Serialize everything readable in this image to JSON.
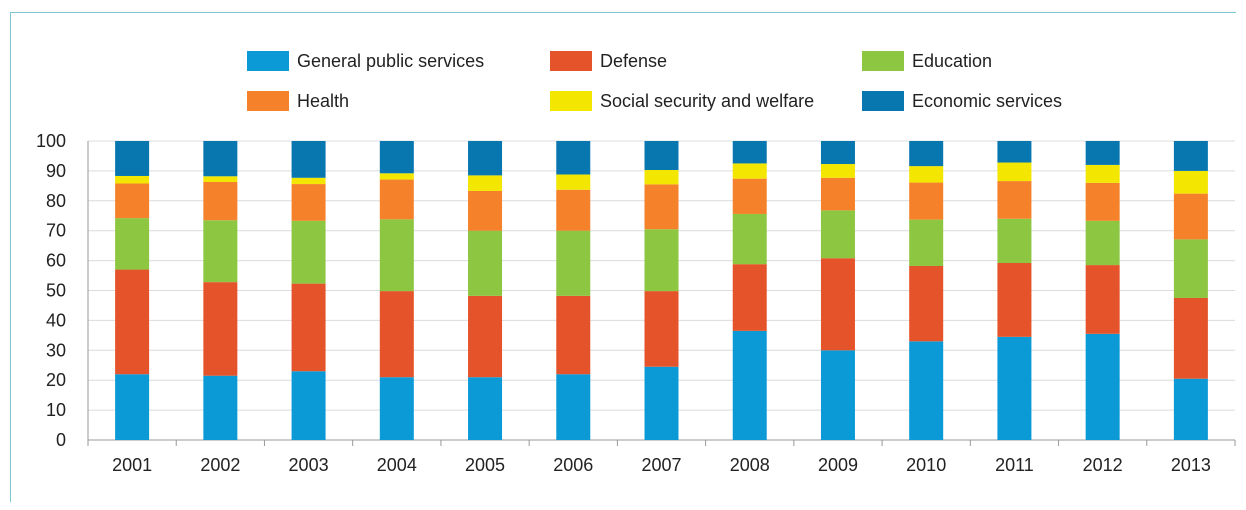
{
  "chart_data": {
    "type": "bar",
    "stacked": true,
    "categories": [
      "2001",
      "2002",
      "2003",
      "2004",
      "2005",
      "2006",
      "2007",
      "2008",
      "2009",
      "2010",
      "2011",
      "2012",
      "2013"
    ],
    "ylim": [
      0,
      100
    ],
    "yticks": [
      0,
      10,
      20,
      30,
      40,
      50,
      60,
      70,
      80,
      90,
      100
    ],
    "grid": true,
    "legend_position": "top",
    "series": [
      {
        "name": "General public services",
        "color": "#0c9ad7",
        "values": [
          22,
          21.5,
          23,
          21,
          21,
          22,
          24.5,
          36.5,
          30,
          33,
          34.5,
          35.5,
          20.5
        ]
      },
      {
        "name": "Defense",
        "color": "#e5532a",
        "values": [
          35,
          31.3,
          29.3,
          28.8,
          27.2,
          26.2,
          25.3,
          22.3,
          30.8,
          25.2,
          24.7,
          23,
          27
        ]
      },
      {
        "name": "Education",
        "color": "#8dc641",
        "values": [
          17.2,
          20.7,
          21,
          24,
          21.8,
          21.8,
          20.7,
          16.8,
          16,
          15.5,
          14.8,
          14.8,
          19.6
        ]
      },
      {
        "name": "Health",
        "color": "#f5822a",
        "values": [
          11.6,
          12.8,
          12.3,
          13.3,
          13.3,
          13.7,
          15,
          11.8,
          10.9,
          12.4,
          12.6,
          12.7,
          15.3
        ]
      },
      {
        "name": "Social security and welfare",
        "color": "#f3e600",
        "values": [
          2.5,
          1.9,
          2.1,
          2.1,
          5.2,
          5.1,
          4.8,
          5.1,
          4.6,
          5.5,
          6.2,
          6,
          7.6
        ]
      },
      {
        "name": "Economic services",
        "color": "#0877b0",
        "values": [
          11.7,
          11.8,
          12.3,
          10.8,
          11.5,
          11.2,
          9.7,
          7.5,
          7.7,
          8.4,
          7.2,
          8,
          10
        ]
      }
    ]
  }
}
